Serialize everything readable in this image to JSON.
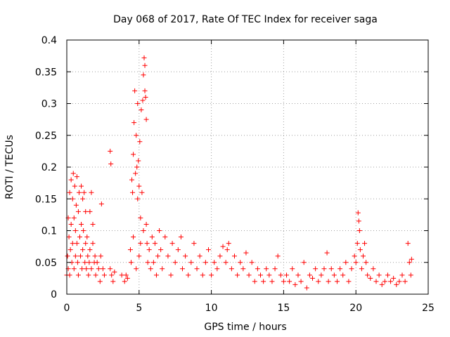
{
  "chart_data": {
    "type": "scatter",
    "title": "Day 068 of 2017, Rate Of TEC Index for receiver saga",
    "xlabel": "GPS time / hours",
    "ylabel": "ROTI / TECUs",
    "xlim": [
      0,
      25
    ],
    "ylim": [
      0,
      0.4
    ],
    "grid": true,
    "x_ticks": [
      0,
      5,
      10,
      15,
      20,
      25
    ],
    "x_tick_labels": [
      "0",
      "5",
      "10",
      "15",
      "20",
      "25"
    ],
    "y_ticks": [
      0,
      0.05,
      0.1,
      0.15,
      0.2,
      0.25,
      0.3,
      0.35,
      0.4
    ],
    "y_tick_labels": [
      "0",
      "0.05",
      "0.1",
      "0.15",
      "0.2",
      "0.25",
      "0.3",
      "0.35",
      "0.4"
    ],
    "marker": "+",
    "marker_color": "#ff0000",
    "series": [
      {
        "name": "ROTI",
        "points": [
          [
            0.0,
            0.03
          ],
          [
            0.05,
            0.06
          ],
          [
            0.1,
            0.12
          ],
          [
            0.1,
            0.04
          ],
          [
            0.15,
            0.09
          ],
          [
            0.2,
            0.16
          ],
          [
            0.2,
            0.03
          ],
          [
            0.25,
            0.07
          ],
          [
            0.3,
            0.18
          ],
          [
            0.3,
            0.11
          ],
          [
            0.35,
            0.05
          ],
          [
            0.4,
            0.15
          ],
          [
            0.4,
            0.08
          ],
          [
            0.45,
            0.19
          ],
          [
            0.5,
            0.12
          ],
          [
            0.5,
            0.04
          ],
          [
            0.55,
            0.17
          ],
          [
            0.6,
            0.1
          ],
          [
            0.6,
            0.06
          ],
          [
            0.65,
            0.14
          ],
          [
            0.7,
            0.185
          ],
          [
            0.7,
            0.08
          ],
          [
            0.75,
            0.05
          ],
          [
            0.8,
            0.13
          ],
          [
            0.8,
            0.03
          ],
          [
            0.85,
            0.16
          ],
          [
            0.9,
            0.09
          ],
          [
            0.95,
            0.06
          ],
          [
            1.0,
            0.17
          ],
          [
            1.0,
            0.11
          ],
          [
            1.05,
            0.04
          ],
          [
            1.1,
            0.15
          ],
          [
            1.1,
            0.07
          ],
          [
            1.15,
            0.1
          ],
          [
            1.2,
            0.16
          ],
          [
            1.25,
            0.05
          ],
          [
            1.3,
            0.13
          ],
          [
            1.3,
            0.08
          ],
          [
            1.35,
            0.04
          ],
          [
            1.4,
            0.09
          ],
          [
            1.45,
            0.06
          ],
          [
            1.5,
            0.03
          ],
          [
            1.55,
            0.05
          ],
          [
            1.6,
            0.13
          ],
          [
            1.6,
            0.07
          ],
          [
            1.7,
            0.16
          ],
          [
            1.7,
            0.04
          ],
          [
            1.8,
            0.08
          ],
          [
            1.8,
            0.11
          ],
          [
            1.9,
            0.05
          ],
          [
            1.95,
            0.06
          ],
          [
            2.0,
            0.03
          ],
          [
            2.1,
            0.05
          ],
          [
            2.2,
            0.04
          ],
          [
            2.3,
            0.02
          ],
          [
            2.35,
            0.06
          ],
          [
            2.4,
            0.142
          ],
          [
            2.5,
            0.04
          ],
          [
            2.6,
            0.03
          ],
          [
            3.0,
            0.225
          ],
          [
            3.05,
            0.205
          ],
          [
            3.0,
            0.04
          ],
          [
            3.1,
            0.03
          ],
          [
            3.2,
            0.02
          ],
          [
            3.3,
            0.035
          ],
          [
            3.8,
            0.03
          ],
          [
            4.0,
            0.02
          ],
          [
            4.1,
            0.03
          ],
          [
            4.2,
            0.025
          ],
          [
            4.4,
            0.07
          ],
          [
            4.45,
            0.05
          ],
          [
            4.5,
            0.18
          ],
          [
            4.55,
            0.16
          ],
          [
            4.6,
            0.22
          ],
          [
            4.6,
            0.09
          ],
          [
            4.65,
            0.27
          ],
          [
            4.7,
            0.32
          ],
          [
            4.75,
            0.19
          ],
          [
            4.8,
            0.25
          ],
          [
            4.8,
            0.04
          ],
          [
            4.85,
            0.2
          ],
          [
            4.9,
            0.3
          ],
          [
            4.9,
            0.15
          ],
          [
            4.95,
            0.21
          ],
          [
            5.0,
            0.17
          ],
          [
            5.0,
            0.06
          ],
          [
            5.05,
            0.24
          ],
          [
            5.1,
            0.12
          ],
          [
            5.1,
            0.08
          ],
          [
            5.15,
            0.29
          ],
          [
            5.2,
            0.16
          ],
          [
            5.25,
            0.305
          ],
          [
            5.3,
            0.345
          ],
          [
            5.3,
            0.1
          ],
          [
            5.35,
            0.372
          ],
          [
            5.4,
            0.36
          ],
          [
            5.4,
            0.32
          ],
          [
            5.45,
            0.31
          ],
          [
            5.5,
            0.275
          ],
          [
            5.5,
            0.11
          ],
          [
            5.55,
            0.08
          ],
          [
            5.6,
            0.05
          ],
          [
            5.7,
            0.07
          ],
          [
            5.8,
            0.04
          ],
          [
            5.9,
            0.09
          ],
          [
            6.0,
            0.05
          ],
          [
            6.1,
            0.08
          ],
          [
            6.2,
            0.03
          ],
          [
            6.3,
            0.06
          ],
          [
            6.4,
            0.1
          ],
          [
            6.5,
            0.07
          ],
          [
            6.6,
            0.04
          ],
          [
            6.8,
            0.09
          ],
          [
            7.0,
            0.06
          ],
          [
            7.2,
            0.03
          ],
          [
            7.3,
            0.08
          ],
          [
            7.5,
            0.05
          ],
          [
            7.7,
            0.07
          ],
          [
            7.9,
            0.09
          ],
          [
            8.0,
            0.04
          ],
          [
            8.2,
            0.06
          ],
          [
            8.4,
            0.03
          ],
          [
            8.6,
            0.05
          ],
          [
            8.8,
            0.08
          ],
          [
            9.0,
            0.04
          ],
          [
            9.2,
            0.06
          ],
          [
            9.4,
            0.03
          ],
          [
            9.6,
            0.05
          ],
          [
            9.8,
            0.07
          ],
          [
            10.0,
            0.03
          ],
          [
            10.2,
            0.05
          ],
          [
            10.4,
            0.04
          ],
          [
            10.6,
            0.06
          ],
          [
            10.8,
            0.075
          ],
          [
            11.0,
            0.05
          ],
          [
            11.1,
            0.07
          ],
          [
            11.2,
            0.08
          ],
          [
            11.4,
            0.04
          ],
          [
            11.6,
            0.06
          ],
          [
            11.8,
            0.03
          ],
          [
            12.0,
            0.05
          ],
          [
            12.2,
            0.04
          ],
          [
            12.4,
            0.065
          ],
          [
            12.6,
            0.03
          ],
          [
            12.8,
            0.05
          ],
          [
            13.0,
            0.02
          ],
          [
            13.2,
            0.04
          ],
          [
            13.4,
            0.03
          ],
          [
            13.6,
            0.02
          ],
          [
            13.8,
            0.04
          ],
          [
            14.0,
            0.03
          ],
          [
            14.2,
            0.02
          ],
          [
            14.4,
            0.04
          ],
          [
            14.6,
            0.06
          ],
          [
            14.8,
            0.03
          ],
          [
            15.0,
            0.02
          ],
          [
            15.2,
            0.03
          ],
          [
            15.4,
            0.02
          ],
          [
            15.6,
            0.04
          ],
          [
            15.8,
            0.015
          ],
          [
            16.0,
            0.03
          ],
          [
            16.2,
            0.02
          ],
          [
            16.4,
            0.05
          ],
          [
            16.6,
            0.01
          ],
          [
            16.8,
            0.03
          ],
          [
            17.0,
            0.025
          ],
          [
            17.2,
            0.04
          ],
          [
            17.4,
            0.02
          ],
          [
            17.6,
            0.03
          ],
          [
            17.8,
            0.04
          ],
          [
            18.0,
            0.065
          ],
          [
            18.1,
            0.02
          ],
          [
            18.3,
            0.04
          ],
          [
            18.5,
            0.03
          ],
          [
            18.7,
            0.02
          ],
          [
            18.9,
            0.04
          ],
          [
            19.1,
            0.03
          ],
          [
            19.3,
            0.05
          ],
          [
            19.5,
            0.02
          ],
          [
            19.7,
            0.04
          ],
          [
            19.9,
            0.06
          ],
          [
            20.0,
            0.05
          ],
          [
            20.1,
            0.08
          ],
          [
            20.15,
            0.128
          ],
          [
            20.2,
            0.115
          ],
          [
            20.25,
            0.1
          ],
          [
            20.3,
            0.07
          ],
          [
            20.4,
            0.04
          ],
          [
            20.5,
            0.06
          ],
          [
            20.6,
            0.08
          ],
          [
            20.7,
            0.05
          ],
          [
            20.8,
            0.03
          ],
          [
            21.0,
            0.025
          ],
          [
            21.2,
            0.04
          ],
          [
            21.4,
            0.02
          ],
          [
            21.6,
            0.03
          ],
          [
            21.8,
            0.015
          ],
          [
            22.0,
            0.02
          ],
          [
            22.2,
            0.03
          ],
          [
            22.4,
            0.02
          ],
          [
            22.6,
            0.025
          ],
          [
            22.8,
            0.015
          ],
          [
            23.0,
            0.02
          ],
          [
            23.2,
            0.03
          ],
          [
            23.4,
            0.02
          ],
          [
            23.6,
            0.08
          ],
          [
            23.7,
            0.05
          ],
          [
            23.8,
            0.03
          ],
          [
            23.85,
            0.055
          ]
        ]
      }
    ]
  }
}
